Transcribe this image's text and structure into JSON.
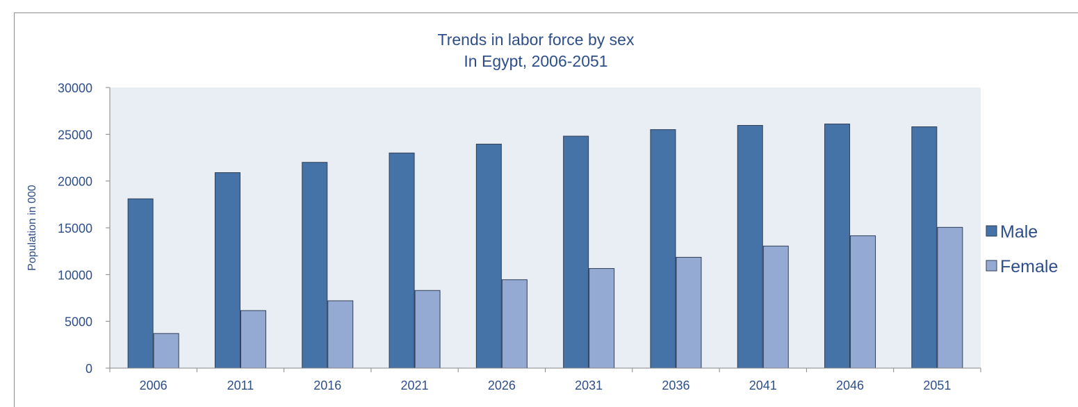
{
  "chart_data": {
    "type": "bar",
    "title": "Trends in labor force by sex",
    "subtitle": "In Egypt, 2006-2051",
    "xlabel": "",
    "ylabel": "Population  in 000",
    "categories": [
      "2006",
      "2011",
      "2016",
      "2021",
      "2026",
      "2031",
      "2036",
      "2041",
      "2046",
      "2051"
    ],
    "series": [
      {
        "name": "Male",
        "color": "#4572A7",
        "values": [
          18100,
          20900,
          22000,
          23000,
          23950,
          24800,
          25500,
          25950,
          26100,
          25800
        ]
      },
      {
        "name": "Female",
        "color": "#95AAD3",
        "values": [
          3700,
          6150,
          7200,
          8300,
          9450,
          10650,
          11850,
          13050,
          14150,
          15050
        ]
      }
    ],
    "ylim": [
      0,
      30000
    ],
    "yticks": [
      "0",
      "5000",
      "10000",
      "15000",
      "20000",
      "25000",
      "30000"
    ],
    "grid": false,
    "legend": "right",
    "plot_background": "#E9EDF4",
    "text_color": "#2E4E8A"
  }
}
